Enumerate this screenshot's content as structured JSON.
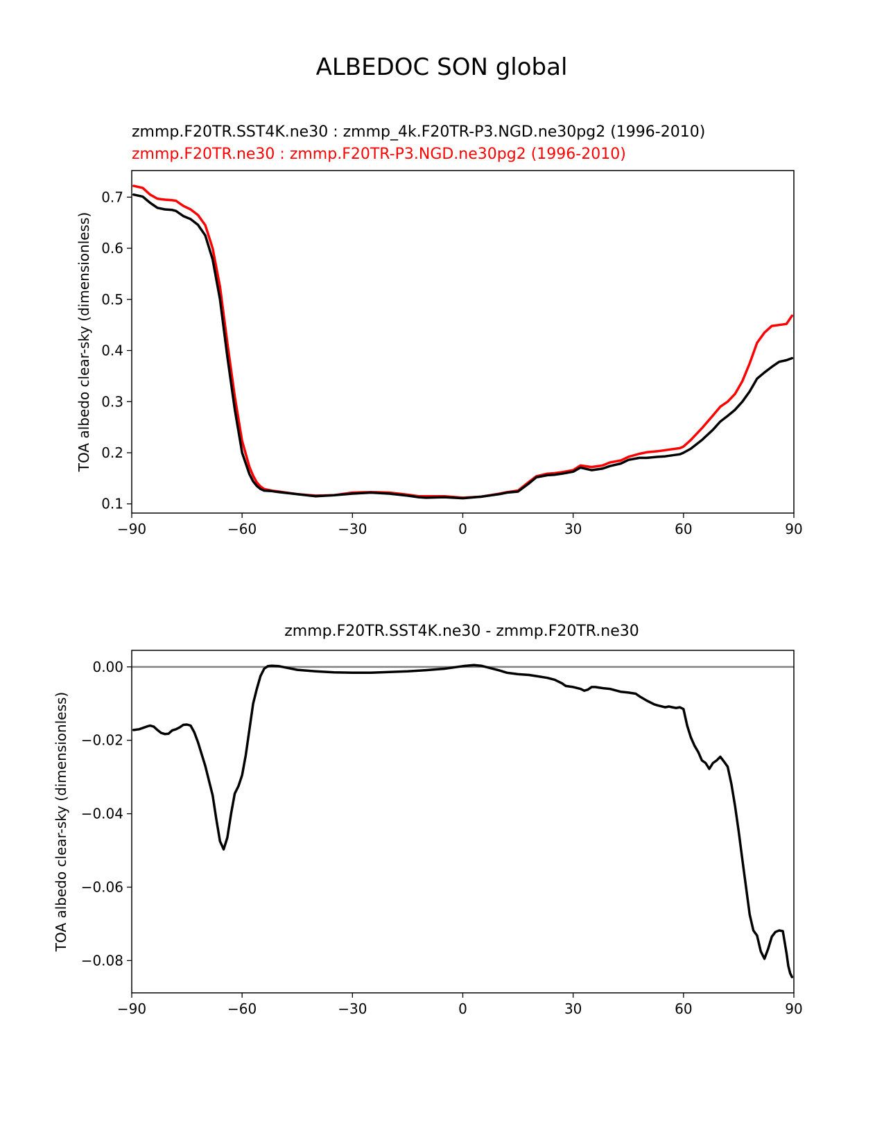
{
  "figure": {
    "title": "ALBEDOC SON global"
  },
  "chart_data": [
    {
      "type": "line",
      "title_lines": [
        {
          "text": "zmmp.F20TR.SST4K.ne30 : zmmp_4k.F20TR-P3.NGD.ne30pg2 (1996-2010)",
          "color": "#000000"
        },
        {
          "text": "zmmp.F20TR.ne30 : zmmp.F20TR-P3.NGD.ne30pg2 (1996-2010)",
          "color": "#ff0000"
        }
      ],
      "xlabel": "",
      "ylabel": "TOA albedo clear-sky (dimensionless)",
      "xlim": [
        -90,
        90
      ],
      "ylim": [
        0.082,
        0.752
      ],
      "xticks": [
        -90,
        -60,
        -30,
        0,
        30,
        60,
        90
      ],
      "xtick_labels": [
        "−90",
        "−60",
        "−30",
        "0",
        "30",
        "60",
        "90"
      ],
      "yticks": [
        0.1,
        0.2,
        0.3,
        0.4,
        0.5,
        0.6,
        0.7
      ],
      "ytick_labels": [
        "0.1",
        "0.2",
        "0.3",
        "0.4",
        "0.5",
        "0.6",
        "0.7"
      ],
      "grid": false,
      "series": [
        {
          "color": "#ff0000",
          "x": [
            -89.5,
            -87,
            -85,
            -83,
            -81,
            -79,
            -78,
            -76,
            -74,
            -72,
            -70,
            -68,
            -66,
            -64,
            -62,
            -60,
            -58,
            -57,
            -56,
            -55,
            -54,
            -52,
            -50,
            -45,
            -40,
            -35,
            -30,
            -25,
            -20,
            -15,
            -12,
            -10,
            -5,
            0,
            5,
            10,
            12,
            15,
            18,
            20,
            23,
            25,
            27,
            30,
            32,
            35,
            38,
            40,
            43,
            45,
            48,
            50,
            53,
            55,
            57,
            59,
            60,
            62,
            65,
            68,
            70,
            72,
            74,
            76,
            78,
            80,
            82,
            84,
            86,
            88,
            89.5
          ],
          "y": [
            0.722,
            0.718,
            0.705,
            0.697,
            0.695,
            0.694,
            0.693,
            0.683,
            0.676,
            0.665,
            0.645,
            0.6,
            0.525,
            0.415,
            0.31,
            0.223,
            0.172,
            0.155,
            0.142,
            0.134,
            0.129,
            0.126,
            0.124,
            0.119,
            0.116,
            0.117,
            0.122,
            0.123,
            0.122,
            0.118,
            0.115,
            0.115,
            0.115,
            0.112,
            0.114,
            0.12,
            0.123,
            0.126,
            0.143,
            0.154,
            0.159,
            0.16,
            0.162,
            0.166,
            0.175,
            0.172,
            0.175,
            0.181,
            0.185,
            0.192,
            0.198,
            0.201,
            0.203,
            0.205,
            0.207,
            0.209,
            0.212,
            0.225,
            0.248,
            0.273,
            0.29,
            0.3,
            0.315,
            0.34,
            0.375,
            0.415,
            0.435,
            0.448,
            0.45,
            0.452,
            0.468
          ]
        },
        {
          "color": "#000000",
          "x": [
            -89.5,
            -87,
            -85,
            -83,
            -81,
            -79,
            -78,
            -76,
            -74,
            -72,
            -70,
            -68,
            -66,
            -64,
            -62,
            -60,
            -58,
            -57,
            -56,
            -55,
            -54,
            -52,
            -50,
            -45,
            -40,
            -35,
            -30,
            -25,
            -20,
            -15,
            -12,
            -10,
            -5,
            0,
            5,
            10,
            12,
            15,
            18,
            20,
            23,
            25,
            27,
            30,
            32,
            35,
            38,
            40,
            43,
            45,
            48,
            50,
            53,
            55,
            57,
            59,
            60,
            62,
            65,
            68,
            70,
            72,
            74,
            76,
            78,
            80,
            82,
            84,
            86,
            88,
            89.5
          ],
          "y": [
            0.705,
            0.701,
            0.689,
            0.679,
            0.676,
            0.675,
            0.673,
            0.663,
            0.657,
            0.646,
            0.625,
            0.578,
            0.5,
            0.388,
            0.285,
            0.2,
            0.158,
            0.144,
            0.135,
            0.129,
            0.126,
            0.125,
            0.123,
            0.119,
            0.115,
            0.117,
            0.12,
            0.122,
            0.12,
            0.116,
            0.113,
            0.112,
            0.113,
            0.111,
            0.114,
            0.119,
            0.122,
            0.124,
            0.14,
            0.152,
            0.156,
            0.157,
            0.159,
            0.163,
            0.171,
            0.166,
            0.169,
            0.174,
            0.179,
            0.186,
            0.19,
            0.19,
            0.192,
            0.193,
            0.195,
            0.197,
            0.2,
            0.208,
            0.225,
            0.245,
            0.261,
            0.272,
            0.284,
            0.3,
            0.32,
            0.345,
            0.357,
            0.368,
            0.378,
            0.381,
            0.385
          ]
        }
      ]
    },
    {
      "type": "line",
      "title_lines": [
        {
          "text": "zmmp.F20TR.SST4K.ne30 - zmmp.F20TR.ne30",
          "color": "#000000"
        }
      ],
      "xlabel": "",
      "ylabel": "TOA albedo clear-sky (dimensionless)",
      "xlim": [
        -90,
        90
      ],
      "ylim": [
        -0.0888,
        0.0045
      ],
      "xticks": [
        -90,
        -60,
        -30,
        0,
        30,
        60,
        90
      ],
      "xtick_labels": [
        "−90",
        "−60",
        "−30",
        "0",
        "30",
        "60",
        "90"
      ],
      "yticks": [
        0.0,
        -0.02,
        -0.04,
        -0.06,
        -0.08
      ],
      "ytick_labels": [
        "0.00",
        "−0.02",
        "−0.04",
        "−0.06",
        "−0.08"
      ],
      "grid": false,
      "zero_line": {
        "y": 0,
        "color": "#808080"
      },
      "series": [
        {
          "color": "#000000",
          "x": [
            -89.5,
            -88,
            -86,
            -85,
            -84,
            -83,
            -82,
            -81,
            -80,
            -79,
            -78,
            -77,
            -76,
            -75,
            -74,
            -73,
            -72,
            -70,
            -68,
            -67,
            -66,
            -65,
            -64,
            -63,
            -62,
            -61,
            -60,
            -59,
            -58,
            -57,
            -56,
            -55,
            -54,
            -53,
            -52,
            -50,
            -45,
            -40,
            -35,
            -30,
            -25,
            -20,
            -15,
            -10,
            -5,
            0,
            3,
            5,
            7,
            10,
            12,
            15,
            18,
            20,
            23,
            25,
            27,
            28,
            30,
            32,
            33,
            34,
            35,
            36,
            38,
            40,
            43,
            45,
            47,
            48,
            50,
            52,
            53,
            55,
            56,
            57,
            58,
            59,
            60,
            61,
            62,
            63,
            64,
            65,
            66,
            67,
            68,
            69,
            70,
            71,
            72,
            73,
            74,
            75,
            76,
            77,
            78,
            79,
            80,
            81,
            82,
            83,
            84,
            85,
            86,
            87,
            88,
            88.5,
            89,
            89.5
          ],
          "y": [
            -0.0172,
            -0.017,
            -0.0163,
            -0.016,
            -0.0163,
            -0.0172,
            -0.018,
            -0.0183,
            -0.0182,
            -0.0173,
            -0.017,
            -0.0165,
            -0.0158,
            -0.0157,
            -0.016,
            -0.0178,
            -0.0205,
            -0.027,
            -0.035,
            -0.0415,
            -0.0475,
            -0.0497,
            -0.0465,
            -0.04,
            -0.0345,
            -0.0325,
            -0.0295,
            -0.024,
            -0.017,
            -0.01,
            -0.006,
            -0.0025,
            -0.0005,
            0.0002,
            0.0003,
            0.0002,
            -0.0008,
            -0.0012,
            -0.0015,
            -0.0016,
            -0.0016,
            -0.0014,
            -0.0012,
            -0.0009,
            -0.0005,
            0.0002,
            0.0005,
            0.0003,
            -0.0002,
            -0.001,
            -0.0016,
            -0.002,
            -0.0022,
            -0.0025,
            -0.003,
            -0.0035,
            -0.0045,
            -0.0052,
            -0.0055,
            -0.006,
            -0.0065,
            -0.0062,
            -0.0055,
            -0.0055,
            -0.0058,
            -0.006,
            -0.0068,
            -0.007,
            -0.0073,
            -0.008,
            -0.0092,
            -0.0102,
            -0.0105,
            -0.011,
            -0.0108,
            -0.011,
            -0.0112,
            -0.011,
            -0.0115,
            -0.016,
            -0.0192,
            -0.0215,
            -0.0232,
            -0.0255,
            -0.0262,
            -0.0278,
            -0.0262,
            -0.0255,
            -0.0245,
            -0.0258,
            -0.0272,
            -0.0318,
            -0.0378,
            -0.0448,
            -0.0525,
            -0.06,
            -0.0675,
            -0.0718,
            -0.0732,
            -0.0775,
            -0.0795,
            -0.0768,
            -0.0735,
            -0.0722,
            -0.0718,
            -0.072,
            -0.078,
            -0.0815,
            -0.0835,
            -0.0845
          ]
        }
      ]
    }
  ]
}
